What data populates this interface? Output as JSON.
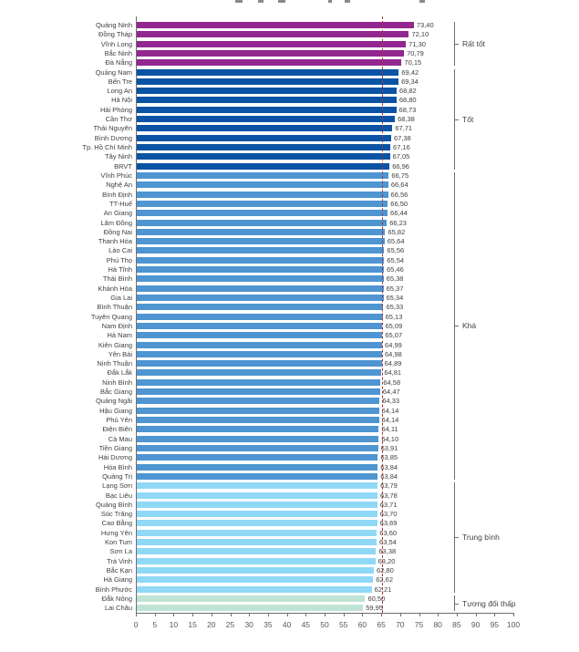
{
  "chart_data": {
    "type": "bar",
    "orientation": "horizontal",
    "title": "",
    "xlabel": "",
    "ylabel": "",
    "xlim": [
      0,
      100
    ],
    "x_ticks": [
      0,
      5,
      10,
      15,
      20,
      25,
      30,
      35,
      40,
      45,
      50,
      55,
      60,
      65,
      70,
      75,
      80,
      85,
      90,
      95,
      100
    ],
    "grid": false,
    "reference_line": {
      "value": 65.13,
      "style": "dashed",
      "color": "#9e3a3c"
    },
    "legend_position": "right-brackets",
    "groups": [
      {
        "label": "Rất tốt",
        "color": "#92278F",
        "provinces": [
          {
            "name": "Quảng Ninh",
            "value": 73.4,
            "label": "73,40"
          },
          {
            "name": "Đồng Tháp",
            "value": 72.1,
            "label": "72,10"
          },
          {
            "name": "Vĩnh Long",
            "value": 71.3,
            "label": "71,30"
          },
          {
            "name": "Bắc Ninh",
            "value": 70.79,
            "label": "70,79"
          },
          {
            "name": "Đà Nẵng",
            "value": 70.15,
            "label": "70,15"
          }
        ]
      },
      {
        "label": "Tốt",
        "color": "#0B53A4",
        "provinces": [
          {
            "name": "Quảng Nam",
            "value": 69.42,
            "label": "69,42"
          },
          {
            "name": "Bến Tre",
            "value": 69.34,
            "label": "69,34"
          },
          {
            "name": "Long An",
            "value": 68.82,
            "label": "68,82"
          },
          {
            "name": "Hà Nội",
            "value": 68.8,
            "label": "68,80"
          },
          {
            "name": "Hải Phòng",
            "value": 68.73,
            "label": "68,73"
          },
          {
            "name": "Cần Thơ",
            "value": 68.38,
            "label": "68,38"
          },
          {
            "name": "Thái Nguyên",
            "value": 67.71,
            "label": "67,71"
          },
          {
            "name": "Bình Dương",
            "value": 67.38,
            "label": "67,38"
          },
          {
            "name": "Tp. Hồ Chí Minh",
            "value": 67.16,
            "label": "67,16"
          },
          {
            "name": "Tây Ninh",
            "value": 67.05,
            "label": "67,05"
          },
          {
            "name": "BRVT",
            "value": 66.96,
            "label": "66,96"
          }
        ]
      },
      {
        "label": "Khá",
        "color": "#4E95D1",
        "provinces": [
          {
            "name": "Vĩnh Phúc",
            "value": 66.75,
            "label": "66,75"
          },
          {
            "name": "Nghệ An",
            "value": 66.64,
            "label": "66,64"
          },
          {
            "name": "Bình Định",
            "value": 66.56,
            "label": "66,56"
          },
          {
            "name": "TT-Huế",
            "value": 66.5,
            "label": "66,50"
          },
          {
            "name": "An Giang",
            "value": 66.44,
            "label": "66,44"
          },
          {
            "name": "Lâm Đồng",
            "value": 66.23,
            "label": "66,23"
          },
          {
            "name": "Đồng Nai",
            "value": 65.82,
            "label": "65,82"
          },
          {
            "name": "Thanh Hóa",
            "value": 65.64,
            "label": "65,64"
          },
          {
            "name": "Lào Cai",
            "value": 65.56,
            "label": "65,56"
          },
          {
            "name": "Phú Thọ",
            "value": 65.54,
            "label": "65,54"
          },
          {
            "name": "Hà Tĩnh",
            "value": 65.46,
            "label": "65,46"
          },
          {
            "name": "Thái Bình",
            "value": 65.38,
            "label": "65,38"
          },
          {
            "name": "Khánh Hòa",
            "value": 65.37,
            "label": "65,37"
          },
          {
            "name": "Gia Lai",
            "value": 65.34,
            "label": "65,34"
          },
          {
            "name": "Bình Thuận",
            "value": 65.33,
            "label": "65,33"
          },
          {
            "name": "Tuyên Quang",
            "value": 65.13,
            "label": "65,13"
          },
          {
            "name": "Nam Định",
            "value": 65.09,
            "label": "65,09"
          },
          {
            "name": "Hà Nam",
            "value": 65.07,
            "label": "65,07"
          },
          {
            "name": "Kiên Giang",
            "value": 64.99,
            "label": "64,99"
          },
          {
            "name": "Yên Bái",
            "value": 64.98,
            "label": "64,98"
          },
          {
            "name": "Ninh Thuận",
            "value": 64.89,
            "label": "64,89"
          },
          {
            "name": "Đắk Lắk",
            "value": 64.81,
            "label": "64,81"
          },
          {
            "name": "Ninh Bình",
            "value": 64.58,
            "label": "64,58"
          },
          {
            "name": "Bắc Giang",
            "value": 64.47,
            "label": "64,47"
          },
          {
            "name": "Quảng Ngãi",
            "value": 64.33,
            "label": "64,33"
          },
          {
            "name": "Hậu Giang",
            "value": 64.14,
            "label": "64,14"
          },
          {
            "name": "Phú Yên",
            "value": 64.14,
            "label": "64,14"
          },
          {
            "name": "Điện Biên",
            "value": 64.11,
            "label": "64,11"
          },
          {
            "name": "Cà Mau",
            "value": 64.1,
            "label": "64,10"
          },
          {
            "name": "Tiền Giang",
            "value": 63.91,
            "label": "63,91"
          },
          {
            "name": "Hải Dương",
            "value": 63.85,
            "label": "63,85"
          },
          {
            "name": "Hòa Bình",
            "value": 63.84,
            "label": "63,84"
          },
          {
            "name": "Quảng Trị",
            "value": 63.84,
            "label": "63,84"
          }
        ]
      },
      {
        "label": "Trung bình",
        "color": "#8FD8F6",
        "provinces": [
          {
            "name": "Lạng Sơn",
            "value": 63.79,
            "label": "63,79"
          },
          {
            "name": "Bạc Liêu",
            "value": 63.78,
            "label": "63,78"
          },
          {
            "name": "Quảng Bình",
            "value": 63.71,
            "label": "63,71"
          },
          {
            "name": "Sóc Trăng",
            "value": 63.7,
            "label": "63,70"
          },
          {
            "name": "Cao Bằng",
            "value": 63.69,
            "label": "63,69"
          },
          {
            "name": "Hưng Yên",
            "value": 63.6,
            "label": "63,60"
          },
          {
            "name": "Kon Tum",
            "value": 63.54,
            "label": "63,54"
          },
          {
            "name": "Sơn La",
            "value": 63.38,
            "label": "63,38"
          },
          {
            "name": "Trà Vinh",
            "value": 63.2,
            "label": "63,20"
          },
          {
            "name": "Bắc Kạn",
            "value": 62.8,
            "label": "62,80"
          },
          {
            "name": "Hà Giang",
            "value": 62.62,
            "label": "62,62"
          },
          {
            "name": "Bình Phước",
            "value": 62.21,
            "label": "62,21"
          }
        ]
      },
      {
        "label": "Tương đối thấp",
        "color": "#BFE3D4",
        "provinces": [
          {
            "name": "Đắk Nông",
            "value": 60.5,
            "label": "60,50"
          },
          {
            "name": "Lai Châu",
            "value": 59.95,
            "label": "59,95"
          }
        ]
      }
    ]
  }
}
